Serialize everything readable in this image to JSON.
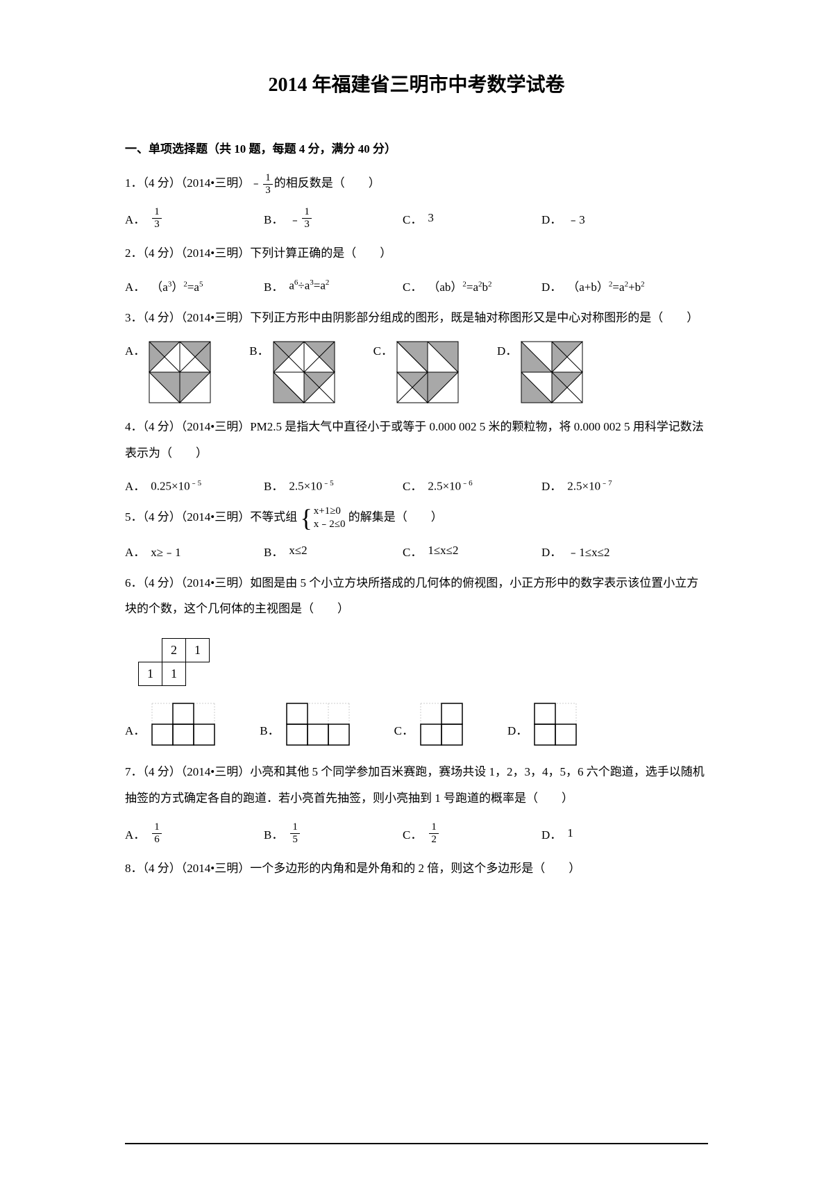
{
  "title": "2014 年福建省三明市中考数学试卷",
  "section_header": "一、单项选择题（共 10 题，每题 4 分，满分 40 分）",
  "q1": {
    "text_prefix": "1．（4 分）（2014•三明）﹣",
    "text_suffix": "的相反数是（　　）",
    "frac_num": "1",
    "frac_den": "3",
    "options": {
      "A": {
        "label": "A．",
        "frac_num": "1",
        "frac_den": "3"
      },
      "B": {
        "label": "B．",
        "prefix": "﹣",
        "frac_num": "1",
        "frac_den": "3"
      },
      "C": {
        "label": "C．",
        "text": "3"
      },
      "D": {
        "label": "D．",
        "text": "﹣3"
      }
    }
  },
  "q2": {
    "text": "2．（4 分）（2014•三明）下列计算正确的是（　　）",
    "options": {
      "A": {
        "label": "A．",
        "html": "（a<sup>3</sup>）<sup>2</sup>=a<sup>5</sup>"
      },
      "B": {
        "label": "B．",
        "html": "a<sup>6</sup>÷a<sup>3</sup>=a<sup>2</sup>"
      },
      "C": {
        "label": "C．",
        "html": "（ab）<sup>2</sup>=a<sup>2</sup>b<sup>2</sup>"
      },
      "D": {
        "label": "D．",
        "html": "（a+b）<sup>2</sup>=a<sup>2</sup>+b<sup>2</sup>"
      }
    }
  },
  "q3": {
    "text": "3．（4 分）（2014•三明）下列正方形中由阴影部分组成的图形，既是轴对称图形又是中心对称图形的是（　　）",
    "labels": {
      "A": "A．",
      "B": "B．",
      "C": "C．",
      "D": "D．"
    }
  },
  "q4": {
    "text": "4．（4 分）（2014•三明）PM2.5 是指大气中直径小于或等于 0.000 002 5 米的颗粒物，将 0.000 002 5 用科学记数法表示为（　　）",
    "options": {
      "A": {
        "label": "A．",
        "html": "0.25×10<sup>﹣5</sup>"
      },
      "B": {
        "label": "B．",
        "html": "2.5×10<sup>﹣5</sup>"
      },
      "C": {
        "label": "C．",
        "html": "2.5×10<sup>﹣6</sup>"
      },
      "D": {
        "label": "D．",
        "html": "2.5×10<sup>﹣7</sup>"
      }
    }
  },
  "q5": {
    "prefix": "5．（4 分）（2014•三明）不等式组",
    "line1": "x+1≥0",
    "line2": "x﹣2≤0",
    "suffix": "的解集是（　　）",
    "options": {
      "A": {
        "label": "A．",
        "text": "x≥﹣1"
      },
      "B": {
        "label": "B．",
        "text": "x≤2"
      },
      "C": {
        "label": "C．",
        "text": "1≤x≤2"
      },
      "D": {
        "label": "D．",
        "text": "﹣1≤x≤2"
      }
    }
  },
  "q6": {
    "text": "6．（4 分）（2014•三明）如图是由 5 个小立方块所搭成的几何体的俯视图，小正方形中的数字表示该位置小立方块的个数，这个几何体的主视图是（　　）",
    "topview": [
      [
        "",
        "2",
        "1"
      ],
      [
        "1",
        "1",
        ""
      ]
    ],
    "labels": {
      "A": "A．",
      "B": "B．",
      "C": "C．",
      "D": "D．"
    },
    "heights": {
      "A": [
        1,
        2,
        1
      ],
      "B": [
        2,
        1,
        1
      ],
      "C": [
        1,
        2
      ],
      "D": [
        2,
        1
      ]
    }
  },
  "q7": {
    "text": "7．（4 分）（2014•三明）小亮和其他 5 个同学参加百米赛跑，赛场共设 1，2，3，4，5，6 六个跑道，选手以随机抽签的方式确定各自的跑道．若小亮首先抽签，则小亮抽到 1 号跑道的概率是（　　）",
    "options": {
      "A": {
        "label": "A．",
        "frac_num": "1",
        "frac_den": "6"
      },
      "B": {
        "label": "B．",
        "frac_num": "1",
        "frac_den": "5"
      },
      "C": {
        "label": "C．",
        "frac_num": "1",
        "frac_den": "2"
      },
      "D": {
        "label": "D．",
        "text": "1"
      }
    }
  },
  "q8": {
    "text": "8．（4 分）（2014•三明）一个多边形的内角和是外角和的 2 倍，则这个多边形是（　　）"
  },
  "colors": {
    "text": "#000000",
    "shade": "#a8a8a8",
    "grid_grey": "#cccccc"
  }
}
